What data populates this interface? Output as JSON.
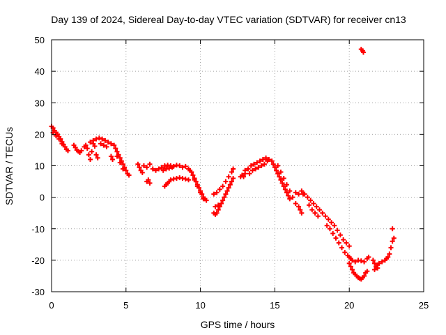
{
  "chart_data": {
    "type": "scatter",
    "title": "Day 139 of 2024, Sidereal Day-to-day VTEC variation (SDTVAR) for receiver cn13",
    "xlabel": "GPS time / hours",
    "ylabel": "SDTVAR / TECUs",
    "xlim": [
      0,
      25
    ],
    "ylim": [
      -30,
      50
    ],
    "xticks": [
      "0",
      "5",
      "10",
      "15",
      "20",
      "25"
    ],
    "yticks": [
      "-30",
      "-20",
      "-10",
      "0",
      "10",
      "20",
      "30",
      "40",
      "50"
    ],
    "grid": true,
    "marker": "plus",
    "color": "#ff0000",
    "series": [
      {
        "name": "SDTVAR",
        "points": [
          [
            0.0,
            22.5
          ],
          [
            0.1,
            22.0
          ],
          [
            0.2,
            21.2
          ],
          [
            0.3,
            20.6
          ],
          [
            0.4,
            20.0
          ],
          [
            0.5,
            19.2
          ],
          [
            0.6,
            18.5
          ],
          [
            0.7,
            17.6
          ],
          [
            0.8,
            16.8
          ],
          [
            0.9,
            16.0
          ],
          [
            1.0,
            15.2
          ],
          [
            1.1,
            14.8
          ],
          [
            0.1,
            20.5
          ],
          [
            0.3,
            19.5
          ],
          [
            0.5,
            18.5
          ],
          [
            0.7,
            17.0
          ],
          [
            1.5,
            16.5
          ],
          [
            1.6,
            15.8
          ],
          [
            1.7,
            15.0
          ],
          [
            1.8,
            14.6
          ],
          [
            1.9,
            14.2
          ],
          [
            2.0,
            14.8
          ],
          [
            2.2,
            16.0
          ],
          [
            2.3,
            16.5
          ],
          [
            2.4,
            15.5
          ],
          [
            2.5,
            13.5
          ],
          [
            2.6,
            12.0
          ],
          [
            2.7,
            14.5
          ],
          [
            2.8,
            17.0
          ],
          [
            2.9,
            16.2
          ],
          [
            3.0,
            13.5
          ],
          [
            3.1,
            12.5
          ],
          [
            2.6,
            17.5
          ],
          [
            2.8,
            18.0
          ],
          [
            3.0,
            18.5
          ],
          [
            3.2,
            18.8
          ],
          [
            3.4,
            18.5
          ],
          [
            3.6,
            18.0
          ],
          [
            3.8,
            17.5
          ],
          [
            4.0,
            17.0
          ],
          [
            3.3,
            17.0
          ],
          [
            3.5,
            16.5
          ],
          [
            3.7,
            16.0
          ],
          [
            4.0,
            13.0
          ],
          [
            4.1,
            12.0
          ],
          [
            4.2,
            16.5
          ],
          [
            4.3,
            15.5
          ],
          [
            4.4,
            14.5
          ],
          [
            4.5,
            13.5
          ],
          [
            4.6,
            12.5
          ],
          [
            4.7,
            11.5
          ],
          [
            4.8,
            10.5
          ],
          [
            4.9,
            9.5
          ],
          [
            5.0,
            8.5
          ],
          [
            5.1,
            7.5
          ],
          [
            5.2,
            7.0
          ],
          [
            4.4,
            13.0
          ],
          [
            4.6,
            11.0
          ],
          [
            4.8,
            9.0
          ],
          [
            5.8,
            10.5
          ],
          [
            5.9,
            9.5
          ],
          [
            6.0,
            8.5
          ],
          [
            6.1,
            7.8
          ],
          [
            6.2,
            10.0
          ],
          [
            6.4,
            9.5
          ],
          [
            6.6,
            10.5
          ],
          [
            6.8,
            9.0
          ],
          [
            7.0,
            8.5
          ],
          [
            6.4,
            5.0
          ],
          [
            6.6,
            4.5
          ],
          [
            6.5,
            5.5
          ],
          [
            7.2,
            9.0
          ],
          [
            7.4,
            9.5
          ],
          [
            7.6,
            10.0
          ],
          [
            7.8,
            10.2
          ],
          [
            8.0,
            10.0
          ],
          [
            8.2,
            9.8
          ],
          [
            8.4,
            10.2
          ],
          [
            8.6,
            10.0
          ],
          [
            8.8,
            9.5
          ],
          [
            9.0,
            9.8
          ],
          [
            9.2,
            9.0
          ],
          [
            7.5,
            8.5
          ],
          [
            7.7,
            9.0
          ],
          [
            7.9,
            9.2
          ],
          [
            8.1,
            9.5
          ],
          [
            7.6,
            3.5
          ],
          [
            7.7,
            4.0
          ],
          [
            7.8,
            4.5
          ],
          [
            7.9,
            5.0
          ],
          [
            8.0,
            5.5
          ],
          [
            8.2,
            5.8
          ],
          [
            8.4,
            6.0
          ],
          [
            8.6,
            6.2
          ],
          [
            8.8,
            6.0
          ],
          [
            9.0,
            5.8
          ],
          [
            9.2,
            5.5
          ],
          [
            9.3,
            8.5
          ],
          [
            9.4,
            8.0
          ],
          [
            9.5,
            7.0
          ],
          [
            9.6,
            6.0
          ],
          [
            9.7,
            5.0
          ],
          [
            9.8,
            4.0
          ],
          [
            9.9,
            3.0
          ],
          [
            10.0,
            2.0
          ],
          [
            10.1,
            1.0
          ],
          [
            10.2,
            0.0
          ],
          [
            10.3,
            -0.5
          ],
          [
            10.4,
            -1.0
          ],
          [
            9.6,
            5.5
          ],
          [
            9.8,
            3.5
          ],
          [
            10.0,
            1.5
          ],
          [
            10.2,
            -0.5
          ],
          [
            10.9,
            -5.0
          ],
          [
            11.0,
            -5.5
          ],
          [
            11.1,
            -5.0
          ],
          [
            11.2,
            -4.0
          ],
          [
            11.3,
            -3.0
          ],
          [
            11.4,
            -2.0
          ],
          [
            11.5,
            -1.0
          ],
          [
            11.6,
            0.0
          ],
          [
            11.7,
            1.0
          ],
          [
            11.8,
            2.0
          ],
          [
            11.9,
            3.0
          ],
          [
            12.0,
            4.0
          ],
          [
            12.1,
            5.0
          ],
          [
            12.2,
            6.0
          ],
          [
            10.9,
            1.0
          ],
          [
            11.1,
            1.5
          ],
          [
            11.3,
            2.5
          ],
          [
            11.5,
            3.5
          ],
          [
            11.7,
            5.0
          ],
          [
            11.9,
            6.5
          ],
          [
            12.1,
            8.0
          ],
          [
            12.2,
            9.0
          ],
          [
            11.0,
            -3.0
          ],
          [
            11.2,
            -2.5
          ],
          [
            12.7,
            6.5
          ],
          [
            12.8,
            7.0
          ],
          [
            12.9,
            6.5
          ],
          [
            13.0,
            7.5
          ],
          [
            13.0,
            8.5
          ],
          [
            13.2,
            9.0
          ],
          [
            13.4,
            10.0
          ],
          [
            13.6,
            10.5
          ],
          [
            13.8,
            11.0
          ],
          [
            14.0,
            11.5
          ],
          [
            14.2,
            12.0
          ],
          [
            14.4,
            12.5
          ],
          [
            14.6,
            12.0
          ],
          [
            14.8,
            11.5
          ],
          [
            13.3,
            7.5
          ],
          [
            13.5,
            8.5
          ],
          [
            13.7,
            9.0
          ],
          [
            13.9,
            9.5
          ],
          [
            14.1,
            10.0
          ],
          [
            14.3,
            10.5
          ],
          [
            14.5,
            11.5
          ],
          [
            14.9,
            10.5
          ],
          [
            15.0,
            9.5
          ],
          [
            15.1,
            8.5
          ],
          [
            15.2,
            7.5
          ],
          [
            15.3,
            6.5
          ],
          [
            15.4,
            5.5
          ],
          [
            15.5,
            4.5
          ],
          [
            15.6,
            3.5
          ],
          [
            15.7,
            2.5
          ],
          [
            15.8,
            1.5
          ],
          [
            15.9,
            0.5
          ],
          [
            16.0,
            -0.5
          ],
          [
            15.2,
            10.0
          ],
          [
            15.4,
            8.0
          ],
          [
            15.6,
            6.0
          ],
          [
            15.8,
            4.0
          ],
          [
            16.0,
            2.0
          ],
          [
            16.2,
            0.0
          ],
          [
            16.4,
            -2.0
          ],
          [
            16.6,
            -3.0
          ],
          [
            16.4,
            1.5
          ],
          [
            16.6,
            1.0
          ],
          [
            16.8,
            2.0
          ],
          [
            16.9,
            1.0
          ],
          [
            16.7,
            -4.0
          ],
          [
            16.8,
            -5.0
          ],
          [
            17.0,
            1.0
          ],
          [
            17.2,
            0.0
          ],
          [
            17.4,
            -1.0
          ],
          [
            17.6,
            -2.0
          ],
          [
            17.8,
            -3.0
          ],
          [
            18.0,
            -4.0
          ],
          [
            18.2,
            -5.0
          ],
          [
            18.4,
            -6.0
          ],
          [
            17.3,
            -2.5
          ],
          [
            17.5,
            -4.0
          ],
          [
            17.7,
            -5.0
          ],
          [
            17.9,
            -6.0
          ],
          [
            18.6,
            -7.0
          ],
          [
            18.8,
            -8.0
          ],
          [
            19.0,
            -9.0
          ],
          [
            19.2,
            -10.5
          ],
          [
            19.4,
            -12.0
          ],
          [
            19.6,
            -13.5
          ],
          [
            19.8,
            -14.5
          ],
          [
            20.0,
            -15.5
          ],
          [
            18.5,
            -9.0
          ],
          [
            18.7,
            -10.0
          ],
          [
            18.9,
            -11.5
          ],
          [
            19.1,
            -13.0
          ],
          [
            19.3,
            -14.5
          ],
          [
            19.5,
            -16.0
          ],
          [
            19.7,
            -17.5
          ],
          [
            19.9,
            -18.5
          ],
          [
            20.0,
            -19.0
          ],
          [
            20.1,
            -19.5
          ],
          [
            20.2,
            -20.0
          ],
          [
            20.4,
            -20.5
          ],
          [
            20.6,
            -20.0
          ],
          [
            20.8,
            -20.2
          ],
          [
            21.0,
            -20.5
          ],
          [
            21.2,
            -19.5
          ],
          [
            21.3,
            -19.0
          ],
          [
            20.0,
            -21.0
          ],
          [
            20.1,
            -22.0
          ],
          [
            20.2,
            -23.0
          ],
          [
            20.3,
            -24.0
          ],
          [
            20.4,
            -24.5
          ],
          [
            20.5,
            -25.0
          ],
          [
            20.6,
            -25.5
          ],
          [
            20.7,
            -25.8
          ],
          [
            20.8,
            -26.0
          ],
          [
            20.9,
            -25.5
          ],
          [
            21.0,
            -25.0
          ],
          [
            21.1,
            -24.0
          ],
          [
            21.2,
            -23.5
          ],
          [
            21.6,
            -20.0
          ],
          [
            21.7,
            -21.0
          ],
          [
            21.8,
            -22.0
          ],
          [
            21.9,
            -21.5
          ],
          [
            22.0,
            -21.0
          ],
          [
            22.2,
            -20.5
          ],
          [
            22.4,
            -20.0
          ],
          [
            22.5,
            -19.5
          ],
          [
            22.6,
            -19.0
          ],
          [
            22.7,
            -18.0
          ],
          [
            22.8,
            -16.0
          ],
          [
            22.9,
            -14.0
          ],
          [
            23.0,
            -13.0
          ],
          [
            21.7,
            -23.0
          ],
          [
            21.9,
            -22.5
          ],
          [
            22.9,
            -10.0
          ],
          [
            20.8,
            47.0
          ],
          [
            20.9,
            46.5
          ],
          [
            20.95,
            46.0
          ]
        ]
      }
    ]
  }
}
